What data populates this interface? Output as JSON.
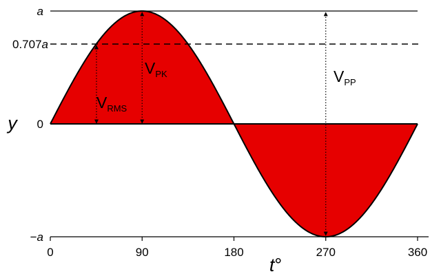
{
  "chart_data": {
    "type": "area",
    "function": "y = a sin(t)",
    "x": [
      0,
      15,
      30,
      45,
      60,
      75,
      90,
      105,
      120,
      135,
      150,
      165,
      180,
      195,
      210,
      225,
      240,
      255,
      270,
      285,
      300,
      315,
      330,
      345,
      360
    ],
    "y": [
      0,
      0.259,
      0.5,
      0.707,
      0.866,
      0.966,
      1,
      0.966,
      0.866,
      0.707,
      0.5,
      0.259,
      0,
      -0.259,
      -0.5,
      -0.707,
      -0.866,
      -0.966,
      -1,
      -0.966,
      -0.866,
      -0.707,
      -0.5,
      -0.259,
      0
    ],
    "xlim": [
      0,
      360
    ],
    "ylim": [
      -1,
      1
    ],
    "x_ticks": [
      "0",
      "90",
      "180",
      "270",
      "360"
    ],
    "y_ticks": [
      {
        "value": 1,
        "text": "a",
        "italic_text": "a"
      },
      {
        "value": 0.707,
        "text": "0.707a",
        "prefix": "0.707",
        "italic_text": "a"
      },
      {
        "value": 0,
        "text": "0"
      },
      {
        "value": -1,
        "text": "−a",
        "prefix": "−",
        "italic_text": "a"
      }
    ],
    "xlabel": {
      "main": "t",
      "suffix": "°"
    },
    "ylabel": "y",
    "fill_color": "#e60000",
    "line_color": "#000000",
    "annotations": [
      {
        "label": "V",
        "subscript": "PK",
        "from": [
          90,
          0
        ],
        "to": [
          90,
          1
        ],
        "style": "dotted-double-arrow"
      },
      {
        "label": "V",
        "subscript": "RMS",
        "from": [
          45,
          0
        ],
        "to": [
          45,
          0.707
        ],
        "style": "dotted-double-arrow"
      },
      {
        "label": "V",
        "subscript": "PP",
        "from": [
          270,
          -1
        ],
        "to": [
          270,
          1
        ],
        "style": "dotted-double-arrow"
      }
    ],
    "reference_lines": [
      {
        "y": 1,
        "style": "solid"
      },
      {
        "y": 0.707,
        "style": "dashed"
      }
    ]
  }
}
